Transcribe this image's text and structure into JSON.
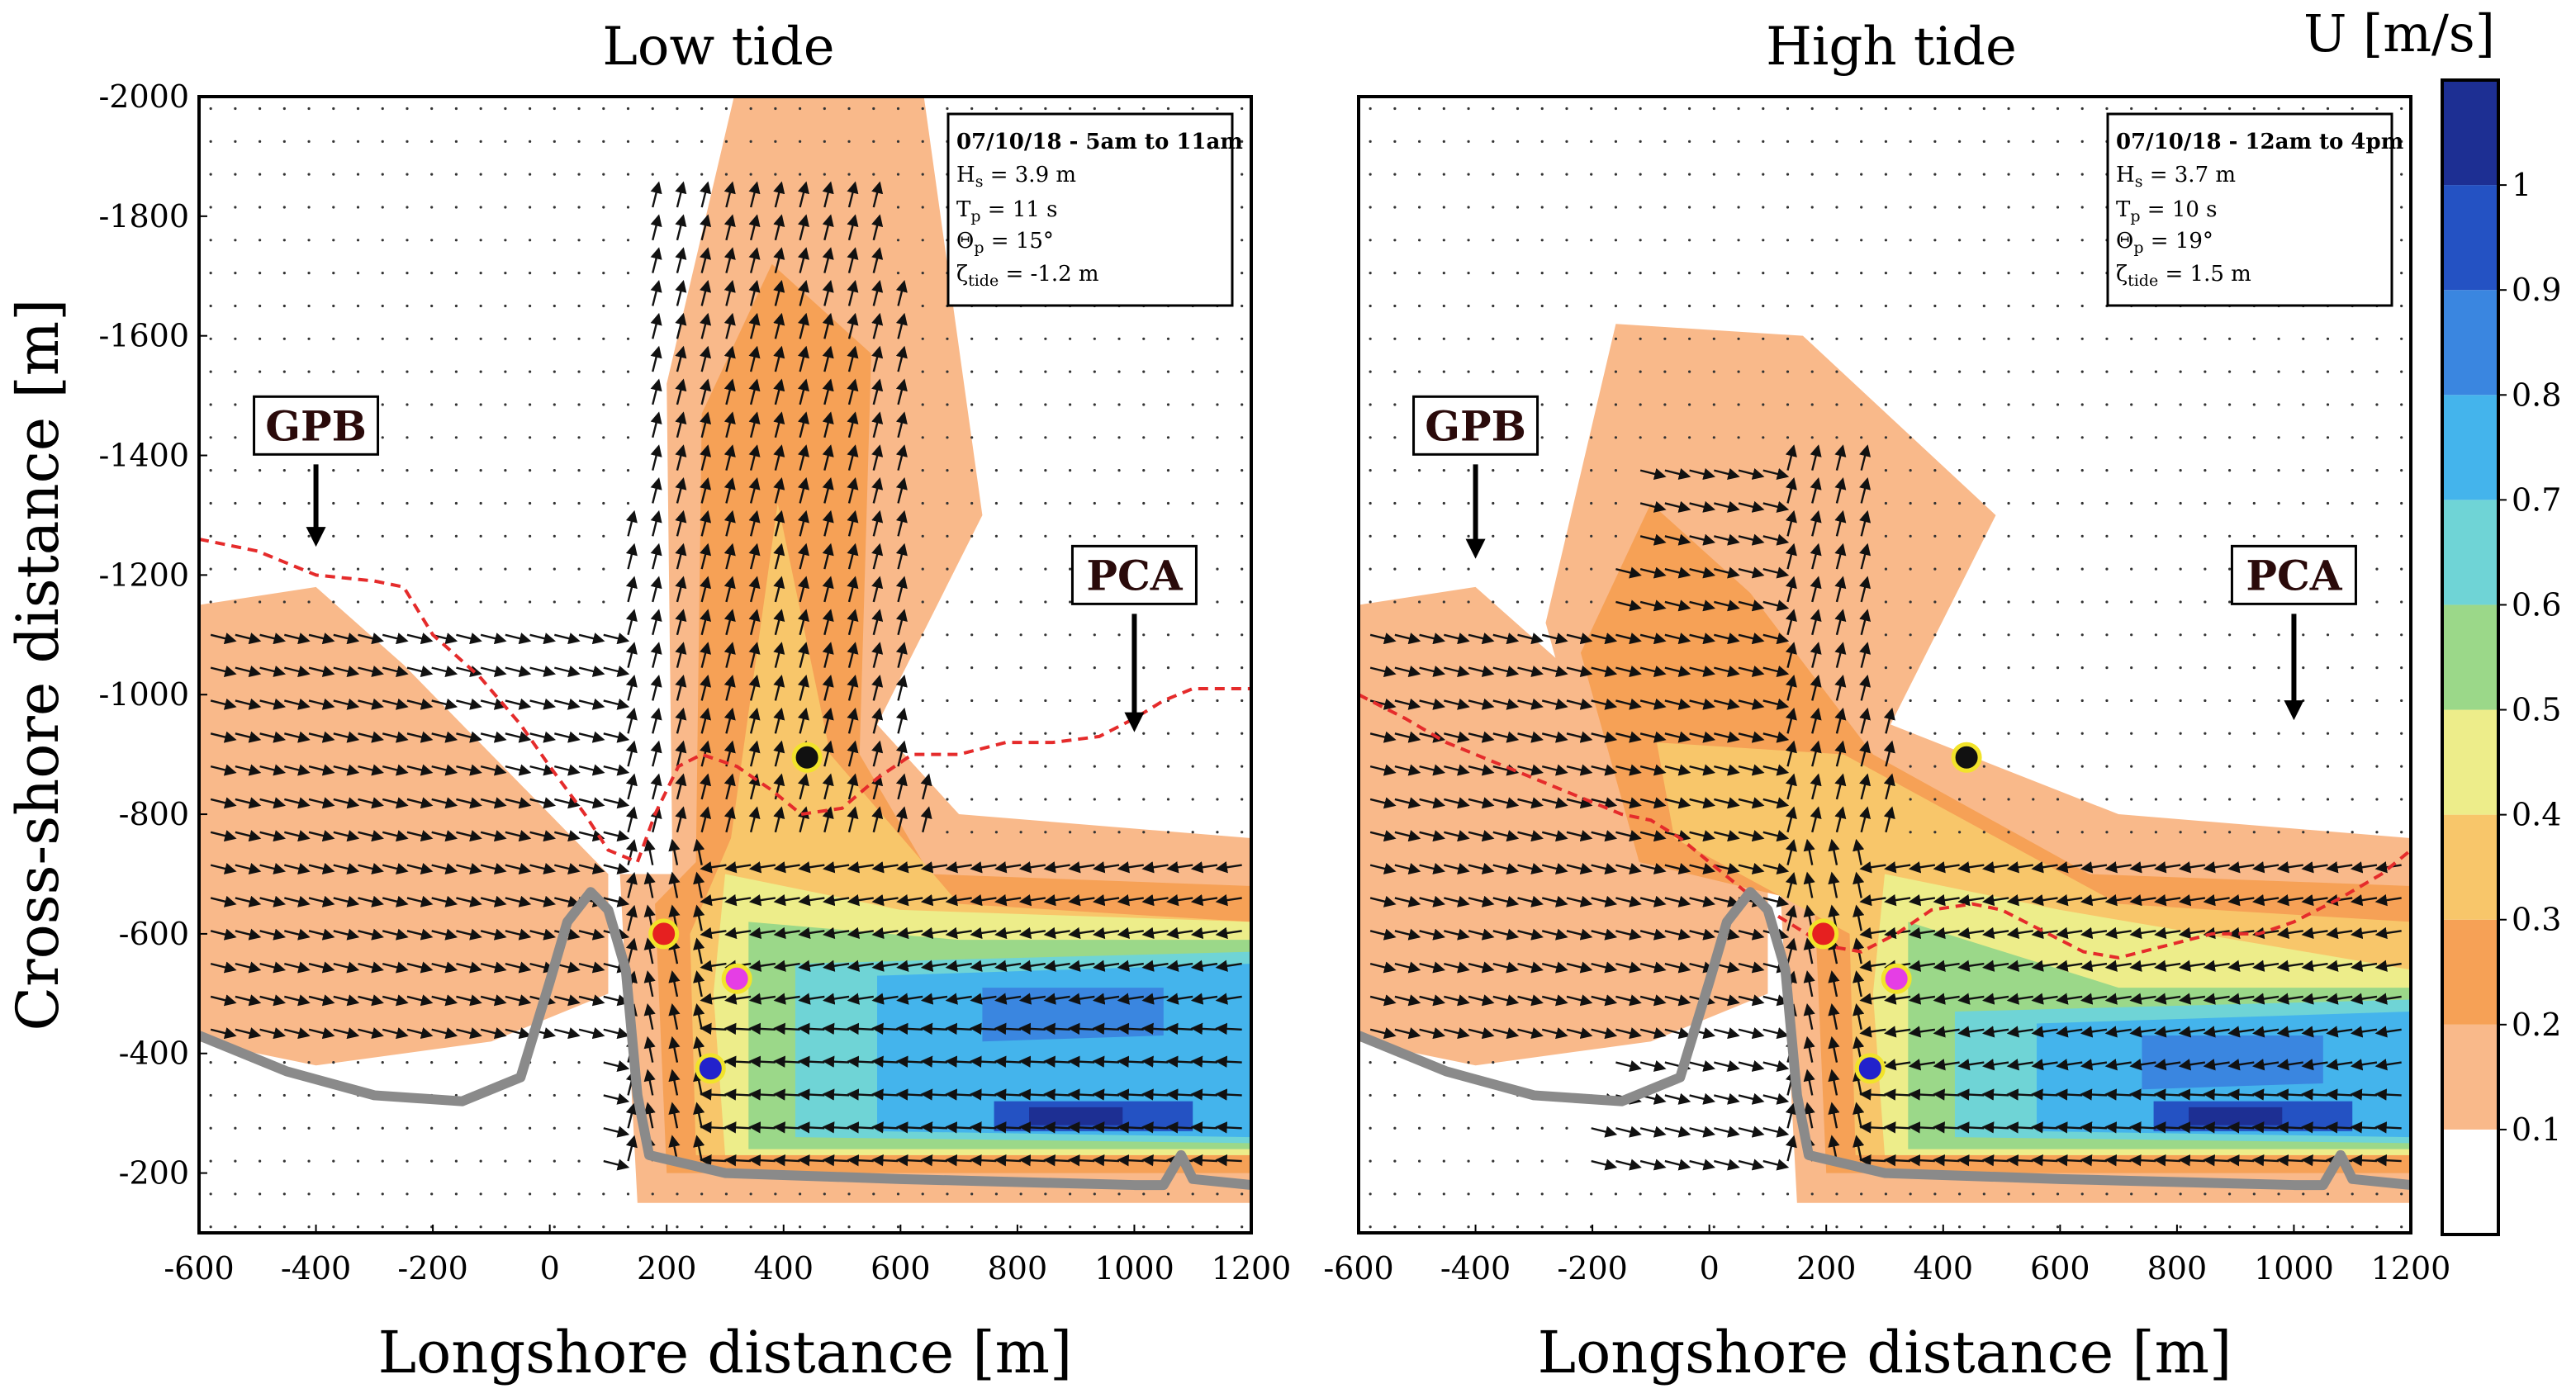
{
  "figure": {
    "colorbar": {
      "title": "U [m/s]",
      "ticks": [
        0.1,
        0.2,
        0.3,
        0.4,
        0.5,
        0.6,
        0.7,
        0.8,
        0.9,
        1
      ],
      "tick_labels": [
        "0.1",
        "0.2",
        "0.3",
        "0.4",
        "0.5",
        "0.6",
        "0.7",
        "0.8",
        "0.9",
        "1"
      ],
      "colors": [
        "#ffffff",
        "#f9b98a",
        "#f6a156",
        "#f8c66a",
        "#eded8a",
        "#9bd889",
        "#6fd4d6",
        "#44b4ec",
        "#3a86e0",
        "#2452c3",
        "#1d2f93"
      ]
    },
    "colors": {
      "shoreline": "#8a8a8a",
      "wave_break_line": "#e52b2b",
      "arrow": "#111111"
    },
    "markers": [
      {
        "name": "black",
        "x": 440,
        "y": -895,
        "fill": "#111111",
        "ring": "#f2e32a"
      },
      {
        "name": "red",
        "x": 195,
        "y": -600,
        "fill": "#e62020",
        "ring": "#f2e32a"
      },
      {
        "name": "magenta",
        "x": 320,
        "y": -525,
        "fill": "#e53ee5",
        "ring": "#f2e32a"
      },
      {
        "name": "blue",
        "x": 275,
        "y": -375,
        "fill": "#2222cc",
        "ring": "#f2e32a"
      }
    ]
  },
  "chart_data": [
    {
      "type": "heatmap",
      "title": "Low tide",
      "xlabel": "Longshore distance [m]",
      "ylabel": "Cross-shore distance [m]",
      "xlim": [
        -600,
        1200
      ],
      "ylim": [
        -2000,
        -100
      ],
      "x_ticks": [
        -600,
        -400,
        -200,
        0,
        200,
        400,
        600,
        800,
        1000,
        1200
      ],
      "y_ticks": [
        -2000,
        -1800,
        -1600,
        -1400,
        -1200,
        -1000,
        -800,
        -600,
        -400,
        -200
      ],
      "x_tick_labels": [
        "-600",
        "-400",
        "-200",
        "0",
        "200",
        "400",
        "600",
        "800",
        "1000",
        "1200"
      ],
      "y_tick_labels": [
        "-2000",
        "-1800",
        "-1600",
        "-1400",
        "-1200",
        "-1000",
        "-800",
        "-600",
        "-400",
        "-200"
      ],
      "info": {
        "header": "07/10/18 - 5am to 11am",
        "hs": {
          "sym": "H",
          "sub": "s",
          "rest": " = 3.9 m"
        },
        "tp": {
          "sym": "T",
          "sub": "p",
          "rest": " = 11 s"
        },
        "theta": {
          "sym": "Θ",
          "sub": "p",
          "rest": " = 15°"
        },
        "zeta": {
          "sym": "ζ",
          "sub": "tide",
          "rest": " = -1.2 m"
        }
      },
      "site_labels": [
        {
          "text": "GPB",
          "x": -400,
          "y": -1450,
          "arrow_to_y": -1250
        },
        {
          "text": "PCA",
          "x": 1000,
          "y": -1200,
          "arrow_to_y": -940
        }
      ],
      "jet": {
        "stem_x": [
          250,
          500
        ],
        "tip_x": 380,
        "tip_y": -1720,
        "current_y": -450
      },
      "break_line": [
        [
          -600,
          -1260
        ],
        [
          -500,
          -1240
        ],
        [
          -400,
          -1200
        ],
        [
          -300,
          -1190
        ],
        [
          -250,
          -1180
        ],
        [
          -200,
          -1100
        ],
        [
          -120,
          -1030
        ],
        [
          -50,
          -950
        ],
        [
          0,
          -880
        ],
        [
          60,
          -800
        ],
        [
          100,
          -740
        ],
        [
          150,
          -720
        ],
        [
          180,
          -800
        ],
        [
          220,
          -880
        ],
        [
          260,
          -900
        ],
        [
          320,
          -880
        ],
        [
          380,
          -840
        ],
        [
          430,
          -800
        ],
        [
          500,
          -810
        ],
        [
          560,
          -860
        ],
        [
          620,
          -900
        ],
        [
          700,
          -900
        ],
        [
          780,
          -920
        ],
        [
          860,
          -920
        ],
        [
          940,
          -930
        ],
        [
          1000,
          -960
        ],
        [
          1050,
          -990
        ],
        [
          1100,
          -1010
        ],
        [
          1200,
          -1010
        ]
      ]
    },
    {
      "type": "heatmap",
      "title": "High tide",
      "xlabel": "Longshore distance [m]",
      "ylabel": "",
      "xlim": [
        -600,
        1200
      ],
      "ylim": [
        -2000,
        -100
      ],
      "x_ticks": [
        -600,
        -400,
        -200,
        0,
        200,
        400,
        600,
        800,
        1000,
        1200
      ],
      "y_ticks": [],
      "x_tick_labels": [
        "-600",
        "-400",
        "-200",
        "0",
        "200",
        "400",
        "600",
        "800",
        "1000",
        "1200"
      ],
      "y_tick_labels": [],
      "info": {
        "header": "07/10/18 - 12am to 4pm",
        "hs": {
          "sym": "H",
          "sub": "s",
          "rest": " = 3.7 m"
        },
        "tp": {
          "sym": "T",
          "sub": "p",
          "rest": " = 10 s"
        },
        "theta": {
          "sym": "Θ",
          "sub": "p",
          "rest": " = 19°"
        },
        "zeta": {
          "sym": "ζ",
          "sub": "tide",
          "rest": " = 1.5 m"
        }
      },
      "site_labels": [
        {
          "text": "GPB",
          "x": -400,
          "y": -1450,
          "arrow_to_y": -1230
        },
        {
          "text": "PCA",
          "x": 1000,
          "y": -1200,
          "arrow_to_y": -960
        }
      ],
      "jet": {
        "stem_x": [
          -120,
          250
        ],
        "tip_x": -100,
        "tip_y": -1320,
        "current_y": -370
      },
      "break_line": [
        [
          -600,
          -1000
        ],
        [
          -520,
          -960
        ],
        [
          -450,
          -920
        ],
        [
          -400,
          -900
        ],
        [
          -350,
          -880
        ],
        [
          -300,
          -860
        ],
        [
          -250,
          -840
        ],
        [
          -200,
          -820
        ],
        [
          -150,
          -800
        ],
        [
          -100,
          -790
        ],
        [
          -50,
          -760
        ],
        [
          0,
          -720
        ],
        [
          50,
          -680
        ],
        [
          100,
          -640
        ],
        [
          150,
          -610
        ],
        [
          200,
          -580
        ],
        [
          260,
          -570
        ],
        [
          320,
          -600
        ],
        [
          380,
          -640
        ],
        [
          450,
          -650
        ],
        [
          500,
          -640
        ],
        [
          560,
          -610
        ],
        [
          640,
          -570
        ],
        [
          700,
          -560
        ],
        [
          780,
          -580
        ],
        [
          860,
          -600
        ],
        [
          940,
          -600
        ],
        [
          1000,
          -620
        ],
        [
          1080,
          -660
        ],
        [
          1150,
          -700
        ],
        [
          1200,
          -740
        ]
      ]
    }
  ]
}
